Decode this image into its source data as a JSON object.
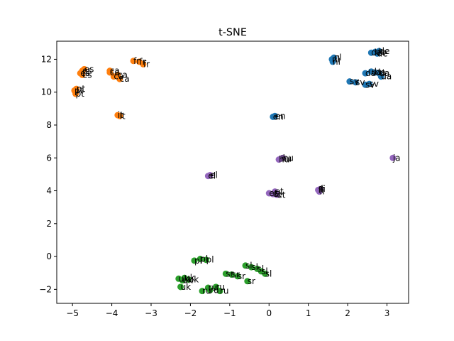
{
  "chart_data": {
    "type": "scatter",
    "title": "t-SNE",
    "xlabel": "",
    "ylabel": "",
    "xlim": [
      -5.4,
      3.55
    ],
    "ylim": [
      -2.85,
      13.1
    ],
    "grid": false,
    "xticks": [
      -5,
      -4,
      -3,
      -2,
      -1,
      0,
      1,
      2,
      3
    ],
    "yticks": [
      -2,
      0,
      2,
      4,
      6,
      8,
      10,
      12
    ],
    "series": [
      {
        "color": "#1f77b4",
        "points": [
          {
            "x": 1.6,
            "y": 12.0,
            "label": "nl"
          },
          {
            "x": 1.65,
            "y": 12.1,
            "label": "nl"
          },
          {
            "x": 1.62,
            "y": 11.85,
            "label": "nl"
          },
          {
            "x": 2.6,
            "y": 12.4,
            "label": "de"
          },
          {
            "x": 2.7,
            "y": 12.45,
            "label": "de"
          },
          {
            "x": 2.75,
            "y": 12.35,
            "label": "de"
          },
          {
            "x": 2.8,
            "y": 12.5,
            "label": "de"
          },
          {
            "x": 2.45,
            "y": 11.15,
            "label": "da"
          },
          {
            "x": 2.6,
            "y": 11.25,
            "label": "da"
          },
          {
            "x": 2.7,
            "y": 11.2,
            "label": "da"
          },
          {
            "x": 2.8,
            "y": 11.15,
            "label": "da"
          },
          {
            "x": 2.85,
            "y": 10.95,
            "label": "da"
          },
          {
            "x": 2.05,
            "y": 10.65,
            "label": "sv"
          },
          {
            "x": 2.2,
            "y": 10.6,
            "label": "sv"
          },
          {
            "x": 2.45,
            "y": 10.45,
            "label": "sv"
          },
          {
            "x": 2.55,
            "y": 10.5,
            "label": "sv"
          },
          {
            "x": 0.1,
            "y": 8.5,
            "label": "en"
          },
          {
            "x": 0.15,
            "y": 8.55,
            "label": "en"
          }
        ]
      },
      {
        "color": "#ff7f0e",
        "points": [
          {
            "x": -4.75,
            "y": 11.3,
            "label": "es"
          },
          {
            "x": -4.8,
            "y": 11.15,
            "label": "es"
          },
          {
            "x": -4.75,
            "y": 11.05,
            "label": "es"
          },
          {
            "x": -4.7,
            "y": 11.4,
            "label": "es"
          },
          {
            "x": -3.45,
            "y": 11.9,
            "label": "fr"
          },
          {
            "x": -3.3,
            "y": 11.85,
            "label": "fr"
          },
          {
            "x": -3.2,
            "y": 11.7,
            "label": "fr"
          },
          {
            "x": -4.05,
            "y": 11.3,
            "label": "ca"
          },
          {
            "x": -4.05,
            "y": 11.2,
            "label": "ca"
          },
          {
            "x": -3.95,
            "y": 10.95,
            "label": "ca"
          },
          {
            "x": -3.85,
            "y": 11.05,
            "label": "ca"
          },
          {
            "x": -3.8,
            "y": 10.8,
            "label": "ca"
          },
          {
            "x": -4.95,
            "y": 10.1,
            "label": "pt"
          },
          {
            "x": -4.9,
            "y": 10.2,
            "label": "pt"
          },
          {
            "x": -4.92,
            "y": 9.9,
            "label": "pt"
          },
          {
            "x": -3.85,
            "y": 8.6,
            "label": "it"
          },
          {
            "x": -3.8,
            "y": 8.55,
            "label": "it"
          }
        ]
      },
      {
        "color": "#2ca02c",
        "points": [
          {
            "x": -1.9,
            "y": -0.25,
            "label": "pl"
          },
          {
            "x": -1.75,
            "y": -0.15,
            "label": "pl"
          },
          {
            "x": -1.6,
            "y": -0.2,
            "label": "pl"
          },
          {
            "x": -2.3,
            "y": -1.35,
            "label": "uk"
          },
          {
            "x": -2.2,
            "y": -1.45,
            "label": "uk"
          },
          {
            "x": -2.15,
            "y": -1.3,
            "label": "uk"
          },
          {
            "x": -2.05,
            "y": -1.4,
            "label": "uk"
          },
          {
            "x": -2.25,
            "y": -1.85,
            "label": "uk"
          },
          {
            "x": -1.7,
            "y": -2.1,
            "label": "ru"
          },
          {
            "x": -1.55,
            "y": -1.9,
            "label": "ru"
          },
          {
            "x": -1.5,
            "y": -2.05,
            "label": "ru"
          },
          {
            "x": -1.35,
            "y": -1.85,
            "label": "ru"
          },
          {
            "x": -1.25,
            "y": -2.1,
            "label": "ru"
          },
          {
            "x": -1.1,
            "y": -1.05,
            "label": "sr"
          },
          {
            "x": -0.95,
            "y": -1.1,
            "label": "sr"
          },
          {
            "x": -0.8,
            "y": -1.2,
            "label": "sr"
          },
          {
            "x": -0.55,
            "y": -1.5,
            "label": "sr"
          },
          {
            "x": -0.6,
            "y": -0.55,
            "label": "sl"
          },
          {
            "x": -0.45,
            "y": -0.65,
            "label": "sl"
          },
          {
            "x": -0.3,
            "y": -0.75,
            "label": "sl"
          },
          {
            "x": -0.2,
            "y": -0.9,
            "label": "sl"
          },
          {
            "x": -0.1,
            "y": -1.05,
            "label": "sl"
          }
        ]
      },
      {
        "color": "#9467bd",
        "points": [
          {
            "x": 0.3,
            "y": 5.95,
            "label": "hu"
          },
          {
            "x": 0.35,
            "y": 6.0,
            "label": "hu"
          },
          {
            "x": 0.25,
            "y": 5.9,
            "label": "hu"
          },
          {
            "x": 3.15,
            "y": 6.0,
            "label": "ja"
          },
          {
            "x": -1.55,
            "y": 4.9,
            "label": "el"
          },
          {
            "x": -1.5,
            "y": 4.95,
            "label": "el"
          },
          {
            "x": 1.25,
            "y": 4.05,
            "label": "fi"
          },
          {
            "x": 1.3,
            "y": 4.1,
            "label": "fi"
          },
          {
            "x": 1.28,
            "y": 3.95,
            "label": "fi"
          },
          {
            "x": 0.0,
            "y": 3.85,
            "label": "et"
          },
          {
            "x": 0.1,
            "y": 3.8,
            "label": "et"
          },
          {
            "x": 0.2,
            "y": 3.75,
            "label": "et"
          },
          {
            "x": 0.15,
            "y": 3.95,
            "label": "et"
          }
        ]
      }
    ]
  }
}
